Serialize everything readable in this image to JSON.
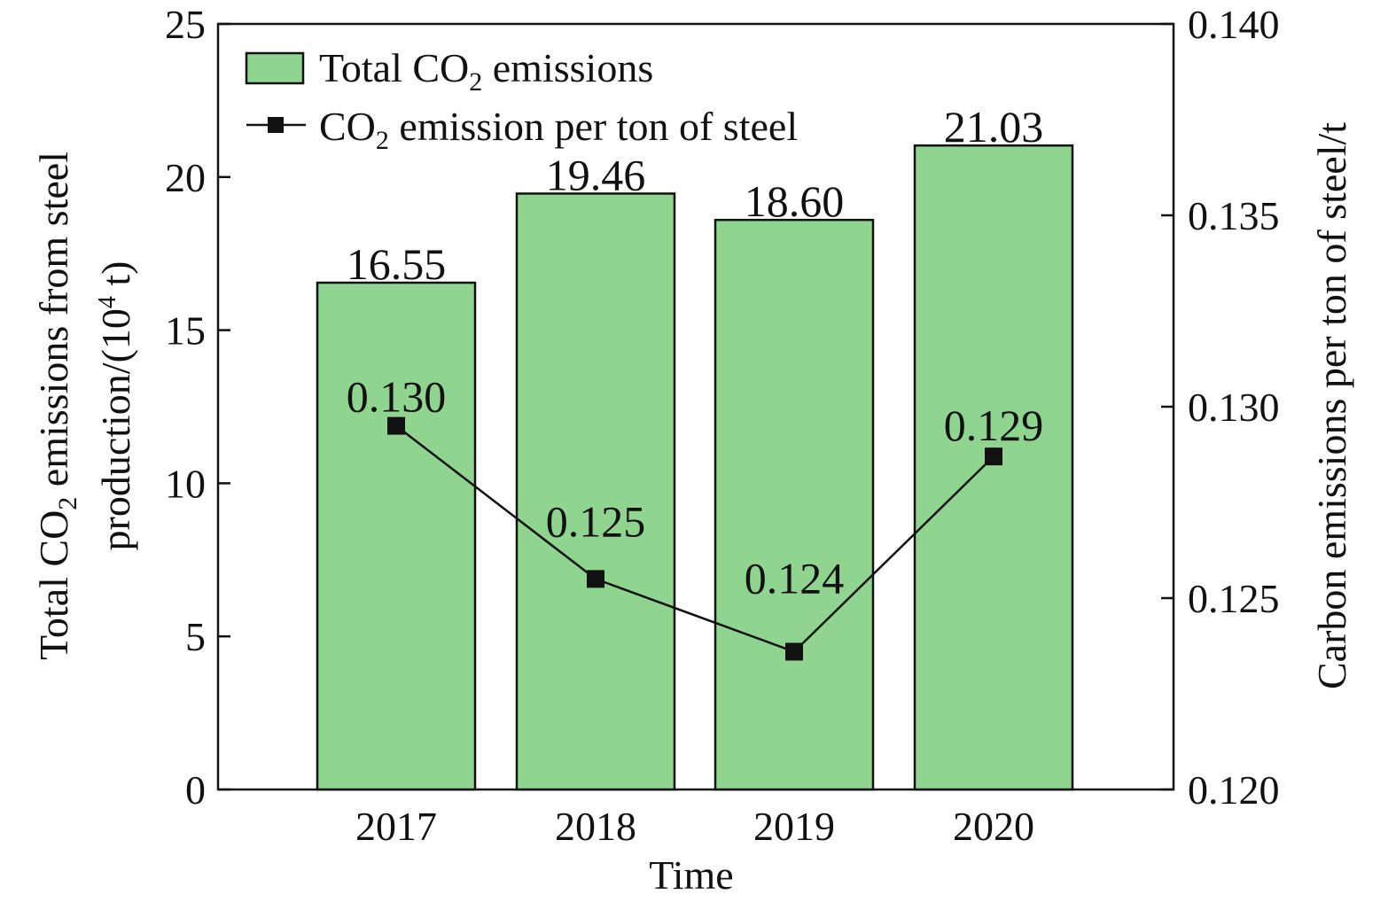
{
  "chart_data": {
    "type": "bar",
    "categories": [
      "2017",
      "2018",
      "2019",
      "2020"
    ],
    "series": [
      {
        "name": "Total CO2 emissions",
        "type": "bar",
        "axis": "left",
        "values": [
          16.55,
          19.46,
          18.6,
          21.03
        ],
        "labels": [
          "16.55",
          "19.46",
          "18.60",
          "21.03"
        ],
        "color": "#8fd48f"
      },
      {
        "name": "CO2 emission per ton of steel",
        "type": "line",
        "axis": "right",
        "values": [
          0.1295,
          0.1255,
          0.1236,
          0.1287
        ],
        "labels": [
          "0.130",
          "0.125",
          "0.124",
          "0.129"
        ],
        "color": "#111111",
        "marker": "square"
      }
    ],
    "legend": [
      {
        "pre": "Total CO",
        "sub": "2",
        "post": " emissions",
        "kind": "bar"
      },
      {
        "pre": "CO",
        "sub": "2",
        "post": " emission per ton of steel",
        "kind": "line"
      }
    ],
    "xlabel": "Time",
    "ylabel_left": {
      "line1": {
        "pre": "Total CO",
        "sub": "2",
        "post": " emissions from steel"
      },
      "line2": {
        "pre": "production/(10",
        "sup": "4",
        "post": " t)"
      }
    },
    "ylabel_right": "Carbon emissions per ton of steel/t",
    "ylim_left": [
      0,
      25
    ],
    "yticks_left": [
      "0",
      "5",
      "10",
      "15",
      "20",
      "25"
    ],
    "ylim_right": [
      0.12,
      0.14
    ],
    "yticks_right": [
      "0.120",
      "0.125",
      "0.130",
      "0.135",
      "0.140"
    ],
    "grid": false,
    "legend_position": "top-left"
  }
}
